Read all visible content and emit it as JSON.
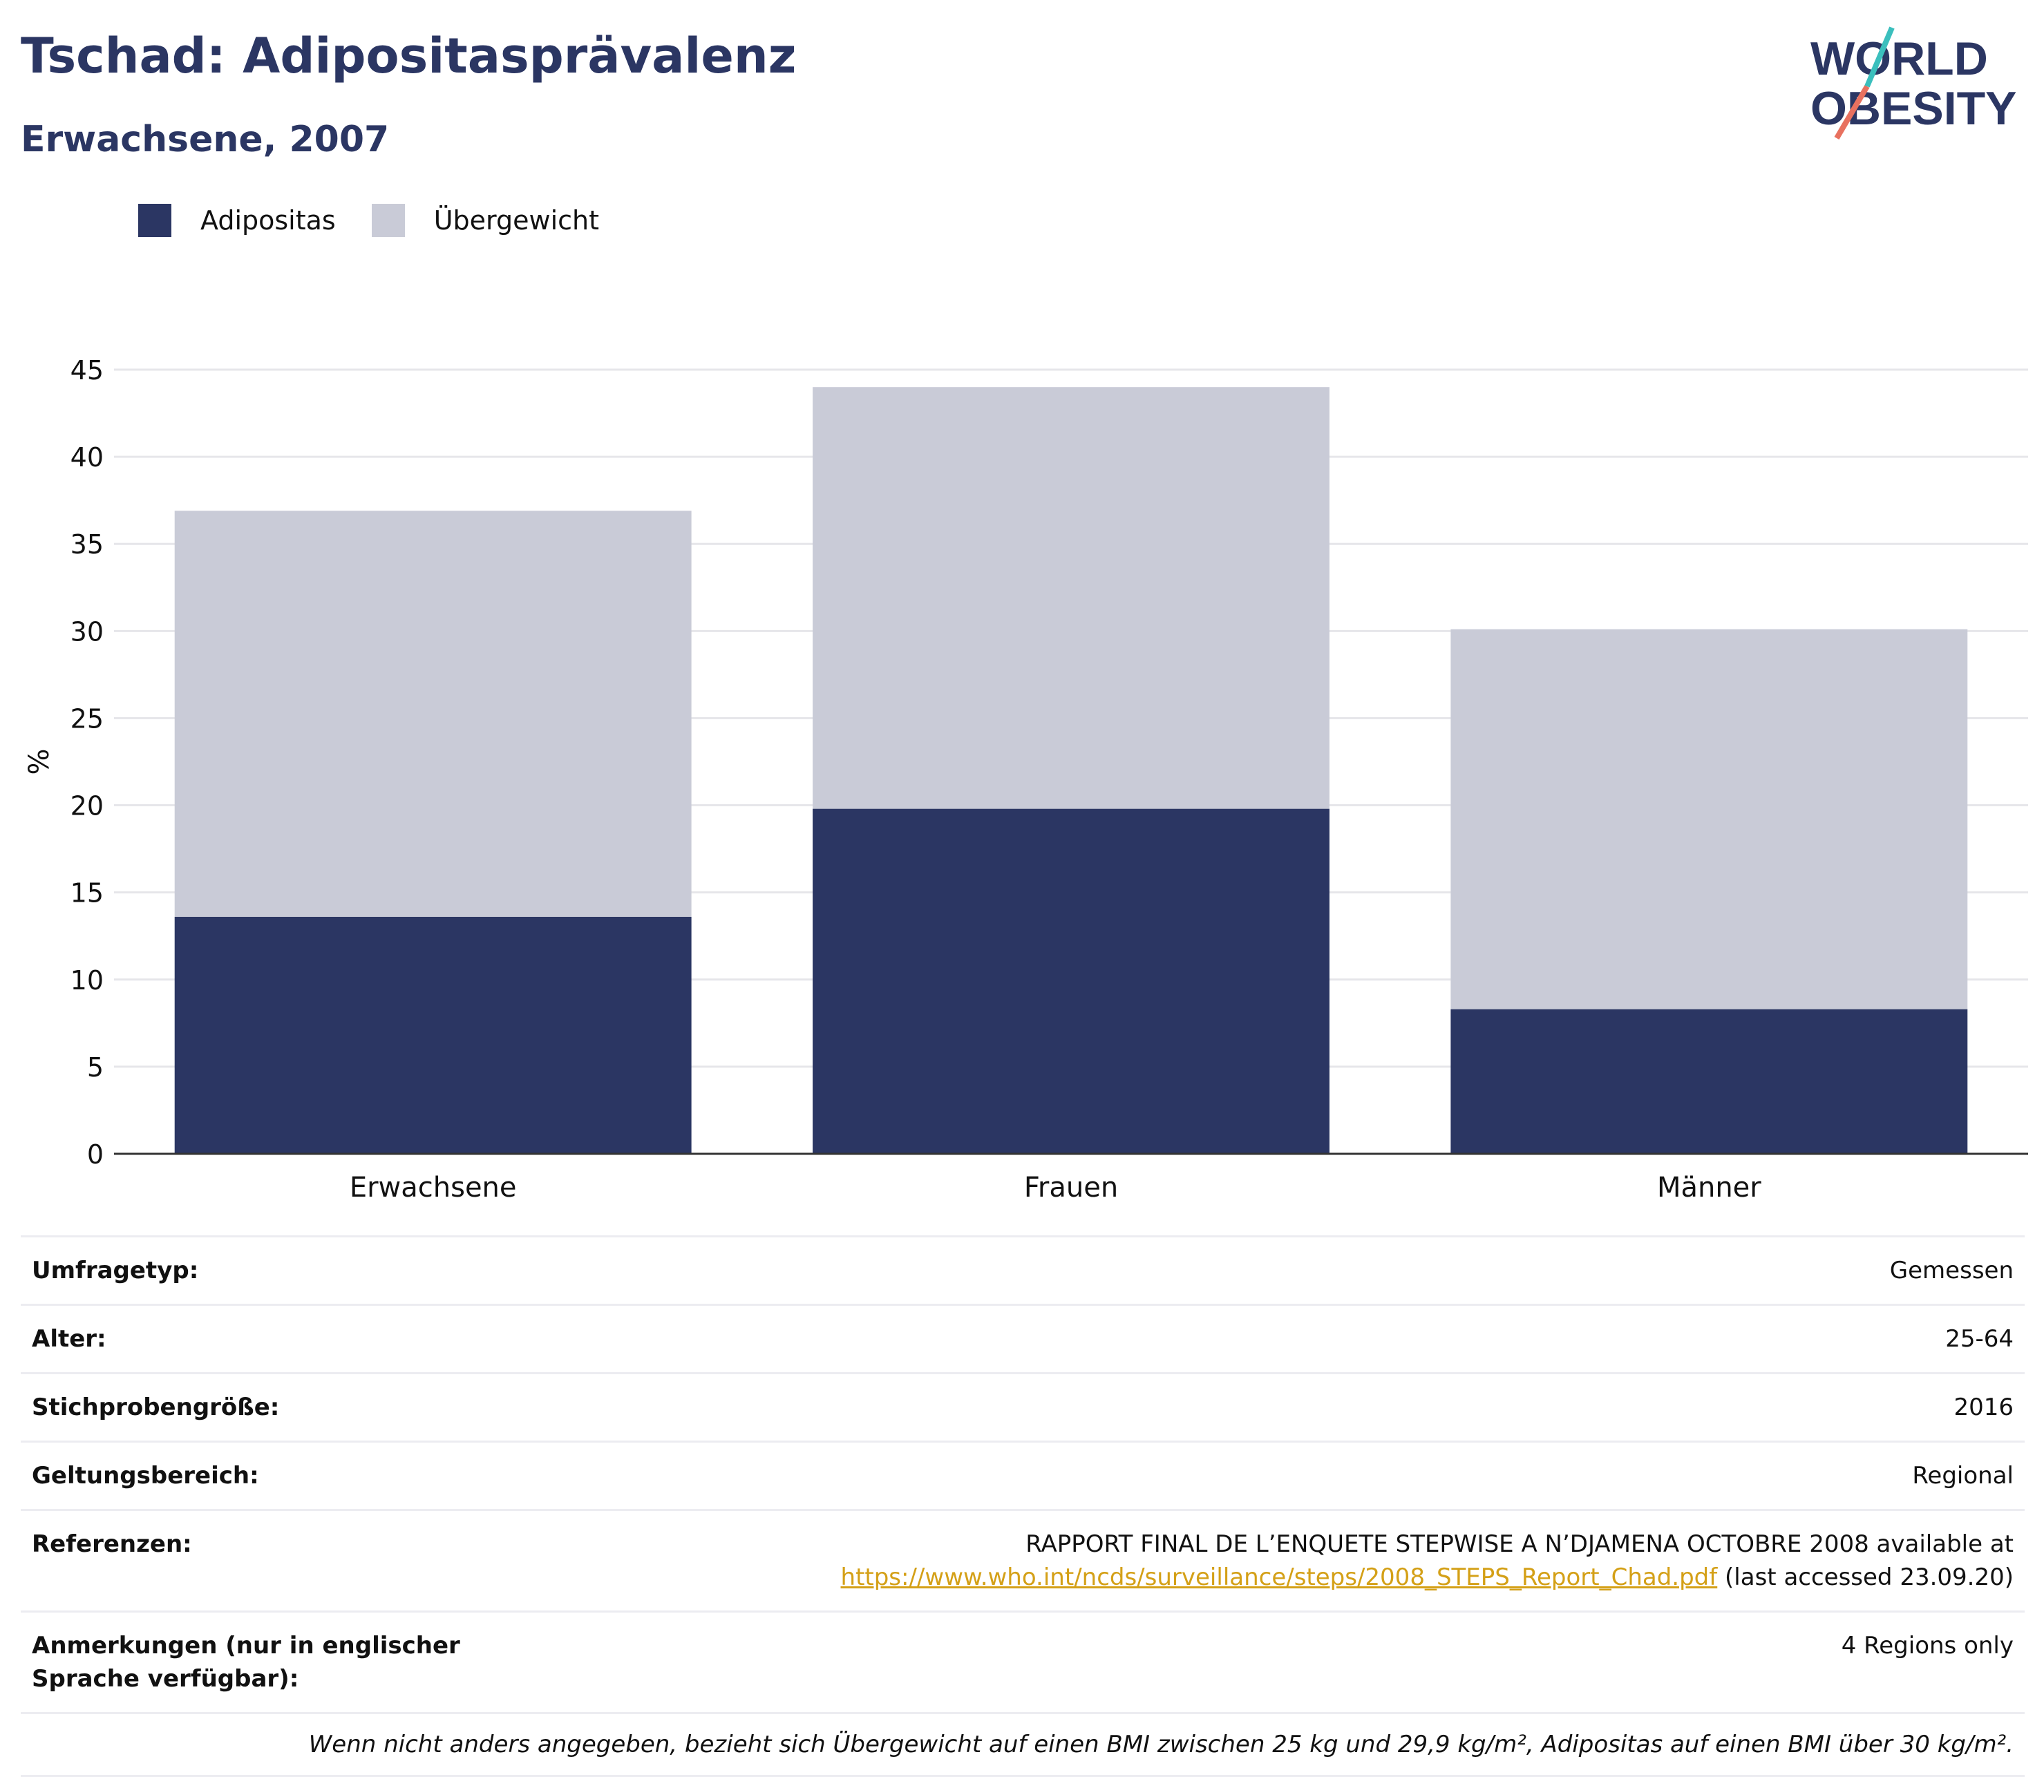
{
  "header": {
    "title": "Tschad: Adipositasprävalenz",
    "subtitle": "Erwachsene, 2007"
  },
  "logo": {
    "line1": "WORLD",
    "line2": "OBESITY"
  },
  "colors": {
    "adipositas": "#2b3663",
    "uebergewicht": "#c9cbd7",
    "grid": "#e6e6ea",
    "axis": "#333333",
    "link": "#d4a017"
  },
  "chart_data": {
    "type": "bar",
    "stacked": true,
    "categories": [
      "Erwachsene",
      "Frauen",
      "Männer"
    ],
    "series": [
      {
        "name": "Adipositas",
        "values": [
          13.6,
          19.8,
          8.3
        ]
      },
      {
        "name": "Übergewicht",
        "values": [
          23.3,
          24.2,
          21.8
        ]
      }
    ],
    "ylabel": "%",
    "ylim": [
      0,
      45
    ],
    "yticks": [
      0,
      5,
      10,
      15,
      20,
      25,
      30,
      35,
      40,
      45
    ],
    "grid": true,
    "legend_position": "top-left"
  },
  "meta": [
    {
      "label": "Umfragetyp:",
      "value": "Gemessen"
    },
    {
      "label": "Alter:",
      "value": "25-64"
    },
    {
      "label": "Stichprobengröße:",
      "value": "2016"
    },
    {
      "label": "Geltungsbereich:",
      "value": "Regional"
    }
  ],
  "references": {
    "label": "Referenzen:",
    "text": "RAPPORT FINAL DE L’ENQUETE STEPWISE A N’DJAMENA OCTOBRE 2008 available at",
    "link": "https://www.who.int/ncds/surveillance/steps/2008_STEPS_Report_Chad.pdf",
    "suffix": "(last accessed 23.09.20)"
  },
  "notes": {
    "label": "Anmerkungen (nur in englischer Sprache verfügbar):",
    "value": "4 Regions only"
  },
  "footnote": "Wenn nicht anders angegeben, bezieht sich Übergewicht auf einen BMI zwischen 25 kg und 29,9 kg/m², Adipositas auf einen BMI über 30 kg/m²."
}
